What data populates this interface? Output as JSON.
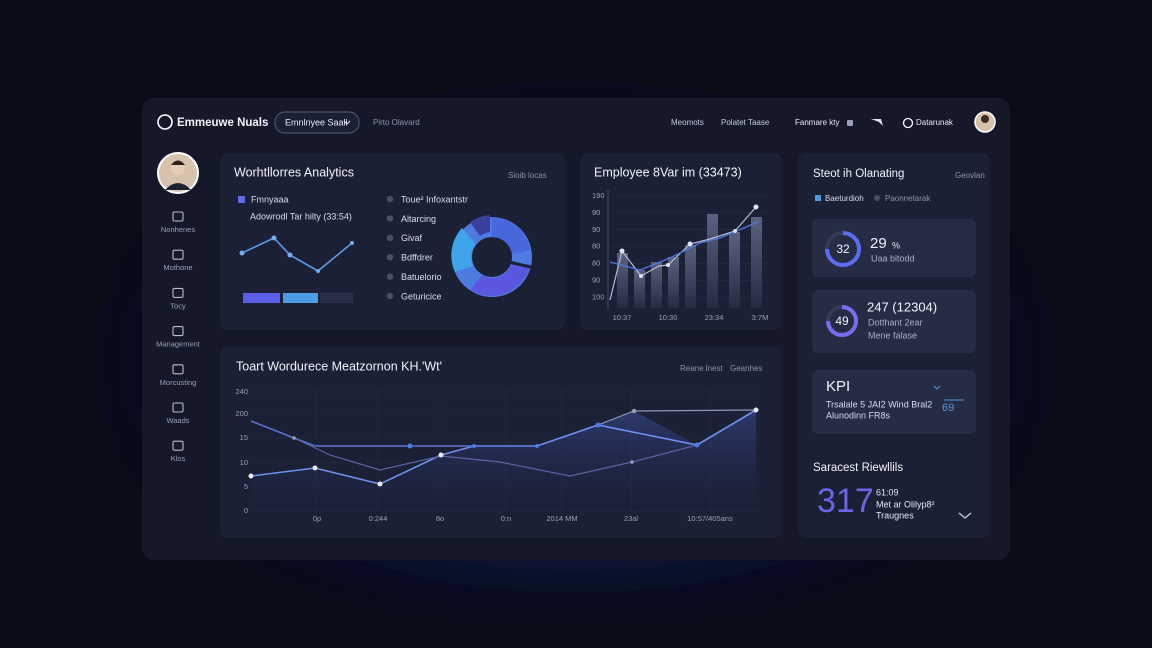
{
  "header": {
    "logo": "Emmeuwe Nuals",
    "dropdown": "Emnlnyee Saall",
    "link": "Pirto Olavard",
    "nav": [
      "Meomots",
      "Polatet Taase",
      "Fanmare kty",
      "Datarunak"
    ]
  },
  "sidebar": {
    "items": [
      "Nonhenes",
      "Mothone",
      "Tocy",
      "Management",
      "Morcusting",
      "Waads",
      "Klos"
    ]
  },
  "analytics": {
    "title": "Worhtllorres Analytics",
    "action": "Sioib locas",
    "legend": "Fmnyaaa",
    "subtitle": "Adowrodl Tar hilty (33:54)",
    "list": [
      "Toue² Infoxantstr",
      "Altarcing",
      "Givaf",
      "Bdffdrer",
      "Batuelorio",
      "Geturicice"
    ]
  },
  "employee_chart": {
    "title": "Employee 8Var im (33473)",
    "y_labels": [
      "190",
      "90",
      "90",
      "80",
      "80",
      "90",
      "100"
    ],
    "x_labels": [
      "10:37",
      "10:30",
      "23:34",
      "3:7M"
    ]
  },
  "workforce_chart": {
    "title": "Toart Wordurece Meatzornon KH.'Wt'",
    "filters": [
      "Reane lnest",
      "Geanhes"
    ],
    "y_labels": [
      "240",
      "200",
      "15",
      "10",
      "5",
      "0"
    ],
    "x_labels": [
      "0p",
      "0:244",
      "8o",
      "0:n",
      "2014 MM",
      "23al",
      "10:57/405ans"
    ]
  },
  "status": {
    "title": "Steot ih Olanating",
    "action": "Geovlan",
    "legend": [
      "Baeturdioh",
      "Paonnetarak"
    ],
    "card1": {
      "ring": "32",
      "value": "29",
      "unit": "%",
      "label": "Uaa bitodd"
    },
    "card2": {
      "ring": "49",
      "value": "247 (12304)",
      "lines": [
        "Dotthant 2ear",
        "Mene falase"
      ]
    },
    "kpi": {
      "title": "KPI",
      "lines": [
        "Trsalale 5 JAI2 Wind Bral2",
        "Alunodinn FR8s"
      ],
      "badge": "69"
    },
    "results": {
      "title": "Saracest Riewllils",
      "big": "317",
      "time": "61:09",
      "lines": [
        "Met ar Olilyp8²",
        "Traugnes"
      ]
    }
  }
}
